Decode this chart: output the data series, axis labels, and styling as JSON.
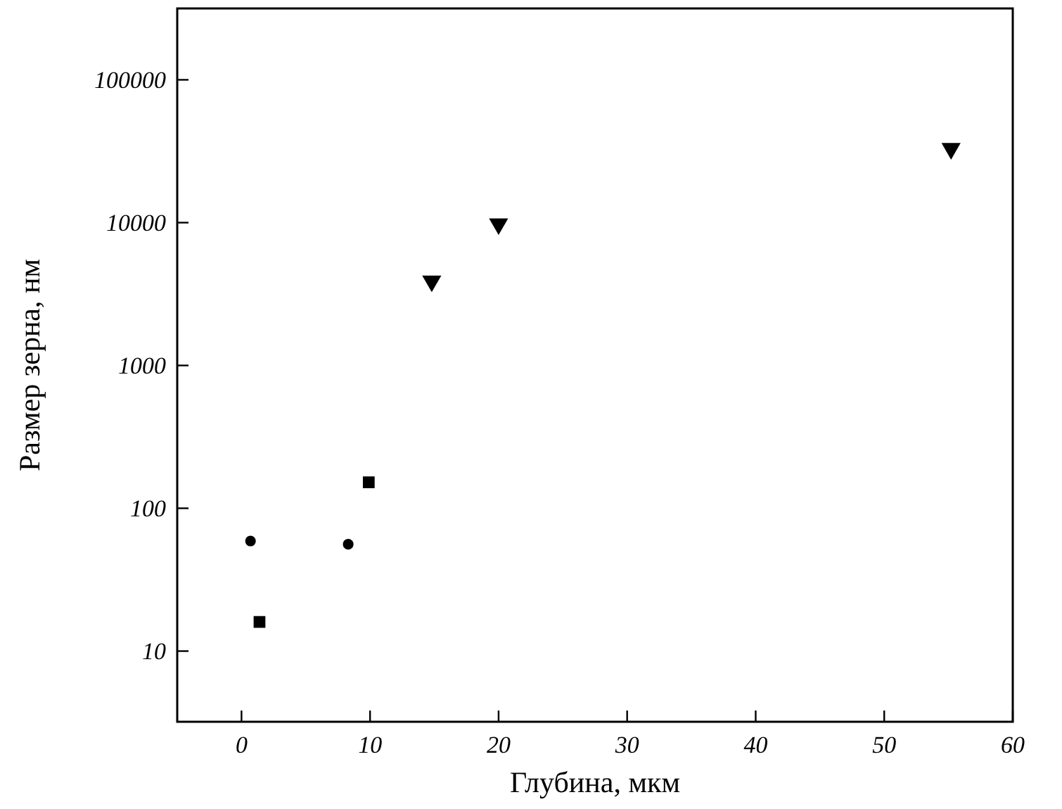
{
  "chart_data": {
    "type": "scatter",
    "xlabel": "Глубина, мкм",
    "ylabel": "Размер зерна, нм",
    "log": "y",
    "grid": false,
    "xlim": [
      -5,
      60
    ],
    "xticks": [
      0,
      10,
      20,
      30,
      40,
      50,
      60
    ],
    "ylim": [
      3.2,
      316000
    ],
    "yticks": [
      10,
      100,
      1000,
      10000,
      100000
    ],
    "series": [
      {
        "color": "#000000",
        "marker": "circle",
        "x": [
          0.7,
          8.3
        ],
        "values": [
          59,
          56
        ]
      },
      {
        "color": "#000000",
        "marker": "square",
        "x": [
          1.4,
          9.9
        ],
        "values": [
          16,
          152
        ]
      },
      {
        "color": "#000000",
        "marker": "triangle",
        "x": [
          14.8,
          20,
          55.2
        ],
        "values": [
          3900,
          9800,
          33000
        ]
      }
    ]
  }
}
